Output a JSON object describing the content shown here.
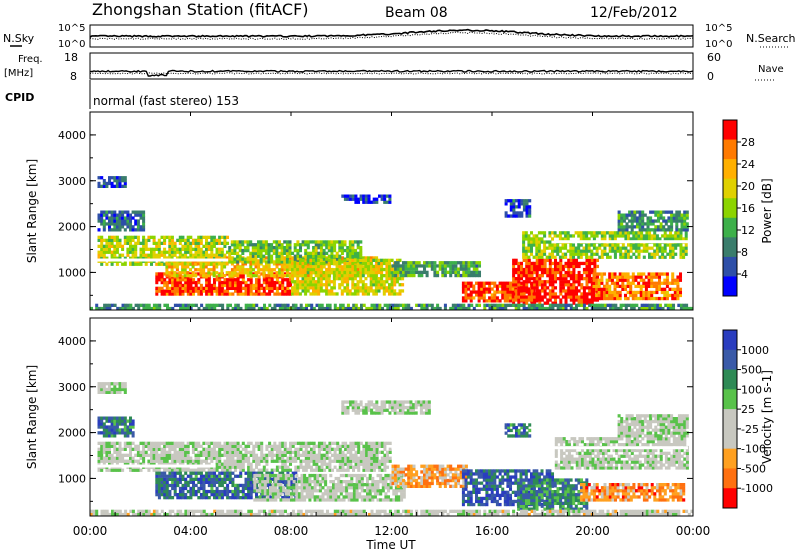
{
  "header": {
    "station": "Zhongshan Station (fitACF)",
    "beam": "Beam 08",
    "date": "12/Feb/2012"
  },
  "strips": {
    "nsky_label": "N.Sky",
    "nsearch_label": "N.Search",
    "noise_ticks_left": [
      "10^5",
      "10^0"
    ],
    "noise_ticks_right": [
      "10^5",
      "10^0"
    ],
    "freq_label": "Freq.",
    "freq_unit": "[MHz]",
    "freq_ticks": [
      "18",
      "8"
    ],
    "nave_label": "Nave",
    "nave_ticks": [
      "60",
      "0"
    ],
    "cpid_label": "CPID",
    "cpid_value": "normal (fast stereo) 153"
  },
  "chart_data": [
    {
      "type": "heatmap",
      "name": "power",
      "ylabel": "Slant Range [km]",
      "ylim": [
        180,
        4500
      ],
      "yticks": [
        "4000",
        "3000",
        "2000",
        "1000"
      ],
      "xlim_hours": [
        0,
        24
      ],
      "colorbar_label": "Power [dB]",
      "colorbar_ticks": [
        "28",
        "24",
        "20",
        "16",
        "12",
        "8",
        "4"
      ],
      "colorbar_colors": [
        "#ff0000",
        "#ff7a00",
        "#ffb000",
        "#e0d000",
        "#8cd400",
        "#3db04a",
        "#3a7d6c",
        "#2e4fa8",
        "#0000ff"
      ],
      "regions": [
        {
          "t0": 0.3,
          "t1": 5.5,
          "r0": 1150,
          "r1": 1800,
          "level": 0.55
        },
        {
          "t0": 0.3,
          "t1": 2.2,
          "r0": 1900,
          "r1": 2350,
          "level": 0.2
        },
        {
          "t0": 0.3,
          "t1": 1.5,
          "r0": 2850,
          "r1": 3100,
          "level": 0.1
        },
        {
          "t0": 2.6,
          "t1": 8.0,
          "r0": 500,
          "r1": 1000,
          "level": 0.95
        },
        {
          "t0": 3.0,
          "t1": 11.5,
          "r0": 900,
          "r1": 1350,
          "level": 0.7
        },
        {
          "t0": 5.5,
          "t1": 10.8,
          "r0": 1200,
          "r1": 1700,
          "level": 0.45
        },
        {
          "t0": 8.0,
          "t1": 12.5,
          "r0": 500,
          "r1": 1300,
          "level": 0.6
        },
        {
          "t0": 12.0,
          "t1": 15.5,
          "r0": 900,
          "r1": 1250,
          "level": 0.35
        },
        {
          "t0": 14.8,
          "t1": 17.8,
          "r0": 350,
          "r1": 800,
          "level": 0.95
        },
        {
          "t0": 16.8,
          "t1": 20.2,
          "r0": 300,
          "r1": 1300,
          "level": 1.0
        },
        {
          "t0": 17.2,
          "t1": 23.8,
          "r0": 1300,
          "r1": 1900,
          "level": 0.5
        },
        {
          "t0": 20.0,
          "t1": 23.5,
          "r0": 400,
          "r1": 1000,
          "level": 0.85
        },
        {
          "t0": 21.0,
          "t1": 23.8,
          "r0": 1900,
          "r1": 2350,
          "level": 0.3
        },
        {
          "t0": 16.5,
          "t1": 17.5,
          "r0": 2200,
          "r1": 2600,
          "level": 0.15
        },
        {
          "t0": 10.0,
          "t1": 12.0,
          "r0": 2500,
          "r1": 2700,
          "level": 0.1
        },
        {
          "t0": 0.0,
          "t1": 24.0,
          "r0": 180,
          "r1": 320,
          "level": 0.3
        }
      ],
      "lines": [
        {
          "t0": 0.3,
          "t1": 5.5,
          "range": 1270,
          "color": "#ffffff"
        },
        {
          "t0": 18.5,
          "t1": 23.8,
          "range": 1670,
          "color": "#ffffff"
        }
      ]
    },
    {
      "type": "heatmap",
      "name": "velocity",
      "ylabel": "Slant Range [km]",
      "ylim": [
        180,
        4500
      ],
      "yticks": [
        "4000",
        "3000",
        "2000",
        "1000"
      ],
      "xlim_hours": [
        0,
        24
      ],
      "xticks": [
        "00:00",
        "04:00",
        "08:00",
        "12:00",
        "16:00",
        "20:00",
        "00:00"
      ],
      "xlabel": "Time UT",
      "colorbar_label": "Velocity [m s-1]",
      "colorbar_ticks": [
        "1000",
        "500",
        "100",
        "25",
        "-25",
        "-100",
        "-500",
        "-1000"
      ],
      "colorbar_colors": [
        "#2a3dbf",
        "#3a5aa8",
        "#2e8a55",
        "#59c24a",
        "#c8c8c0",
        "#c8c8c0",
        "#ffa020",
        "#ff7010",
        "#ff0000"
      ],
      "regions": [
        {
          "t0": 0.3,
          "t1": 1.8,
          "r0": 1900,
          "r1": 2350,
          "level": 0.82
        },
        {
          "t0": 0.3,
          "t1": 5.0,
          "r0": 1150,
          "r1": 1800,
          "level": 0.5
        },
        {
          "t0": 5.0,
          "t1": 12.0,
          "r0": 1150,
          "r1": 1800,
          "level": 0.5
        },
        {
          "t0": 2.6,
          "t1": 8.2,
          "r0": 550,
          "r1": 1150,
          "level": 0.85
        },
        {
          "t0": 6.5,
          "t1": 12.5,
          "r0": 500,
          "r1": 1100,
          "level": 0.5
        },
        {
          "t0": 12.0,
          "t1": 15.0,
          "r0": 800,
          "r1": 1300,
          "level": 0.25
        },
        {
          "t0": 14.8,
          "t1": 18.5,
          "r0": 400,
          "r1": 1200,
          "level": 0.9
        },
        {
          "t0": 17.0,
          "t1": 19.8,
          "r0": 300,
          "r1": 1000,
          "level": 0.75
        },
        {
          "t0": 18.5,
          "t1": 23.8,
          "r0": 1200,
          "r1": 1900,
          "level": 0.5
        },
        {
          "t0": 19.5,
          "t1": 23.7,
          "r0": 500,
          "r1": 900,
          "level": 0.2
        },
        {
          "t0": 21.0,
          "t1": 23.8,
          "r0": 1900,
          "r1": 2400,
          "level": 0.5
        },
        {
          "t0": 0.3,
          "t1": 1.5,
          "r0": 2850,
          "r1": 3100,
          "level": 0.5
        },
        {
          "t0": 16.5,
          "t1": 17.5,
          "r0": 1900,
          "r1": 2200,
          "level": 0.82
        },
        {
          "t0": 10.0,
          "t1": 13.5,
          "r0": 2400,
          "r1": 2700,
          "level": 0.5
        },
        {
          "t0": 0.0,
          "t1": 24.0,
          "r0": 180,
          "r1": 320,
          "level": 0.45
        }
      ],
      "lines": [
        {
          "t0": 0.3,
          "t1": 5.0,
          "range": 1270,
          "color": "#ffffff"
        },
        {
          "t0": 12.0,
          "t1": 23.8,
          "range": 1670,
          "color": "#ffffff"
        }
      ]
    }
  ]
}
